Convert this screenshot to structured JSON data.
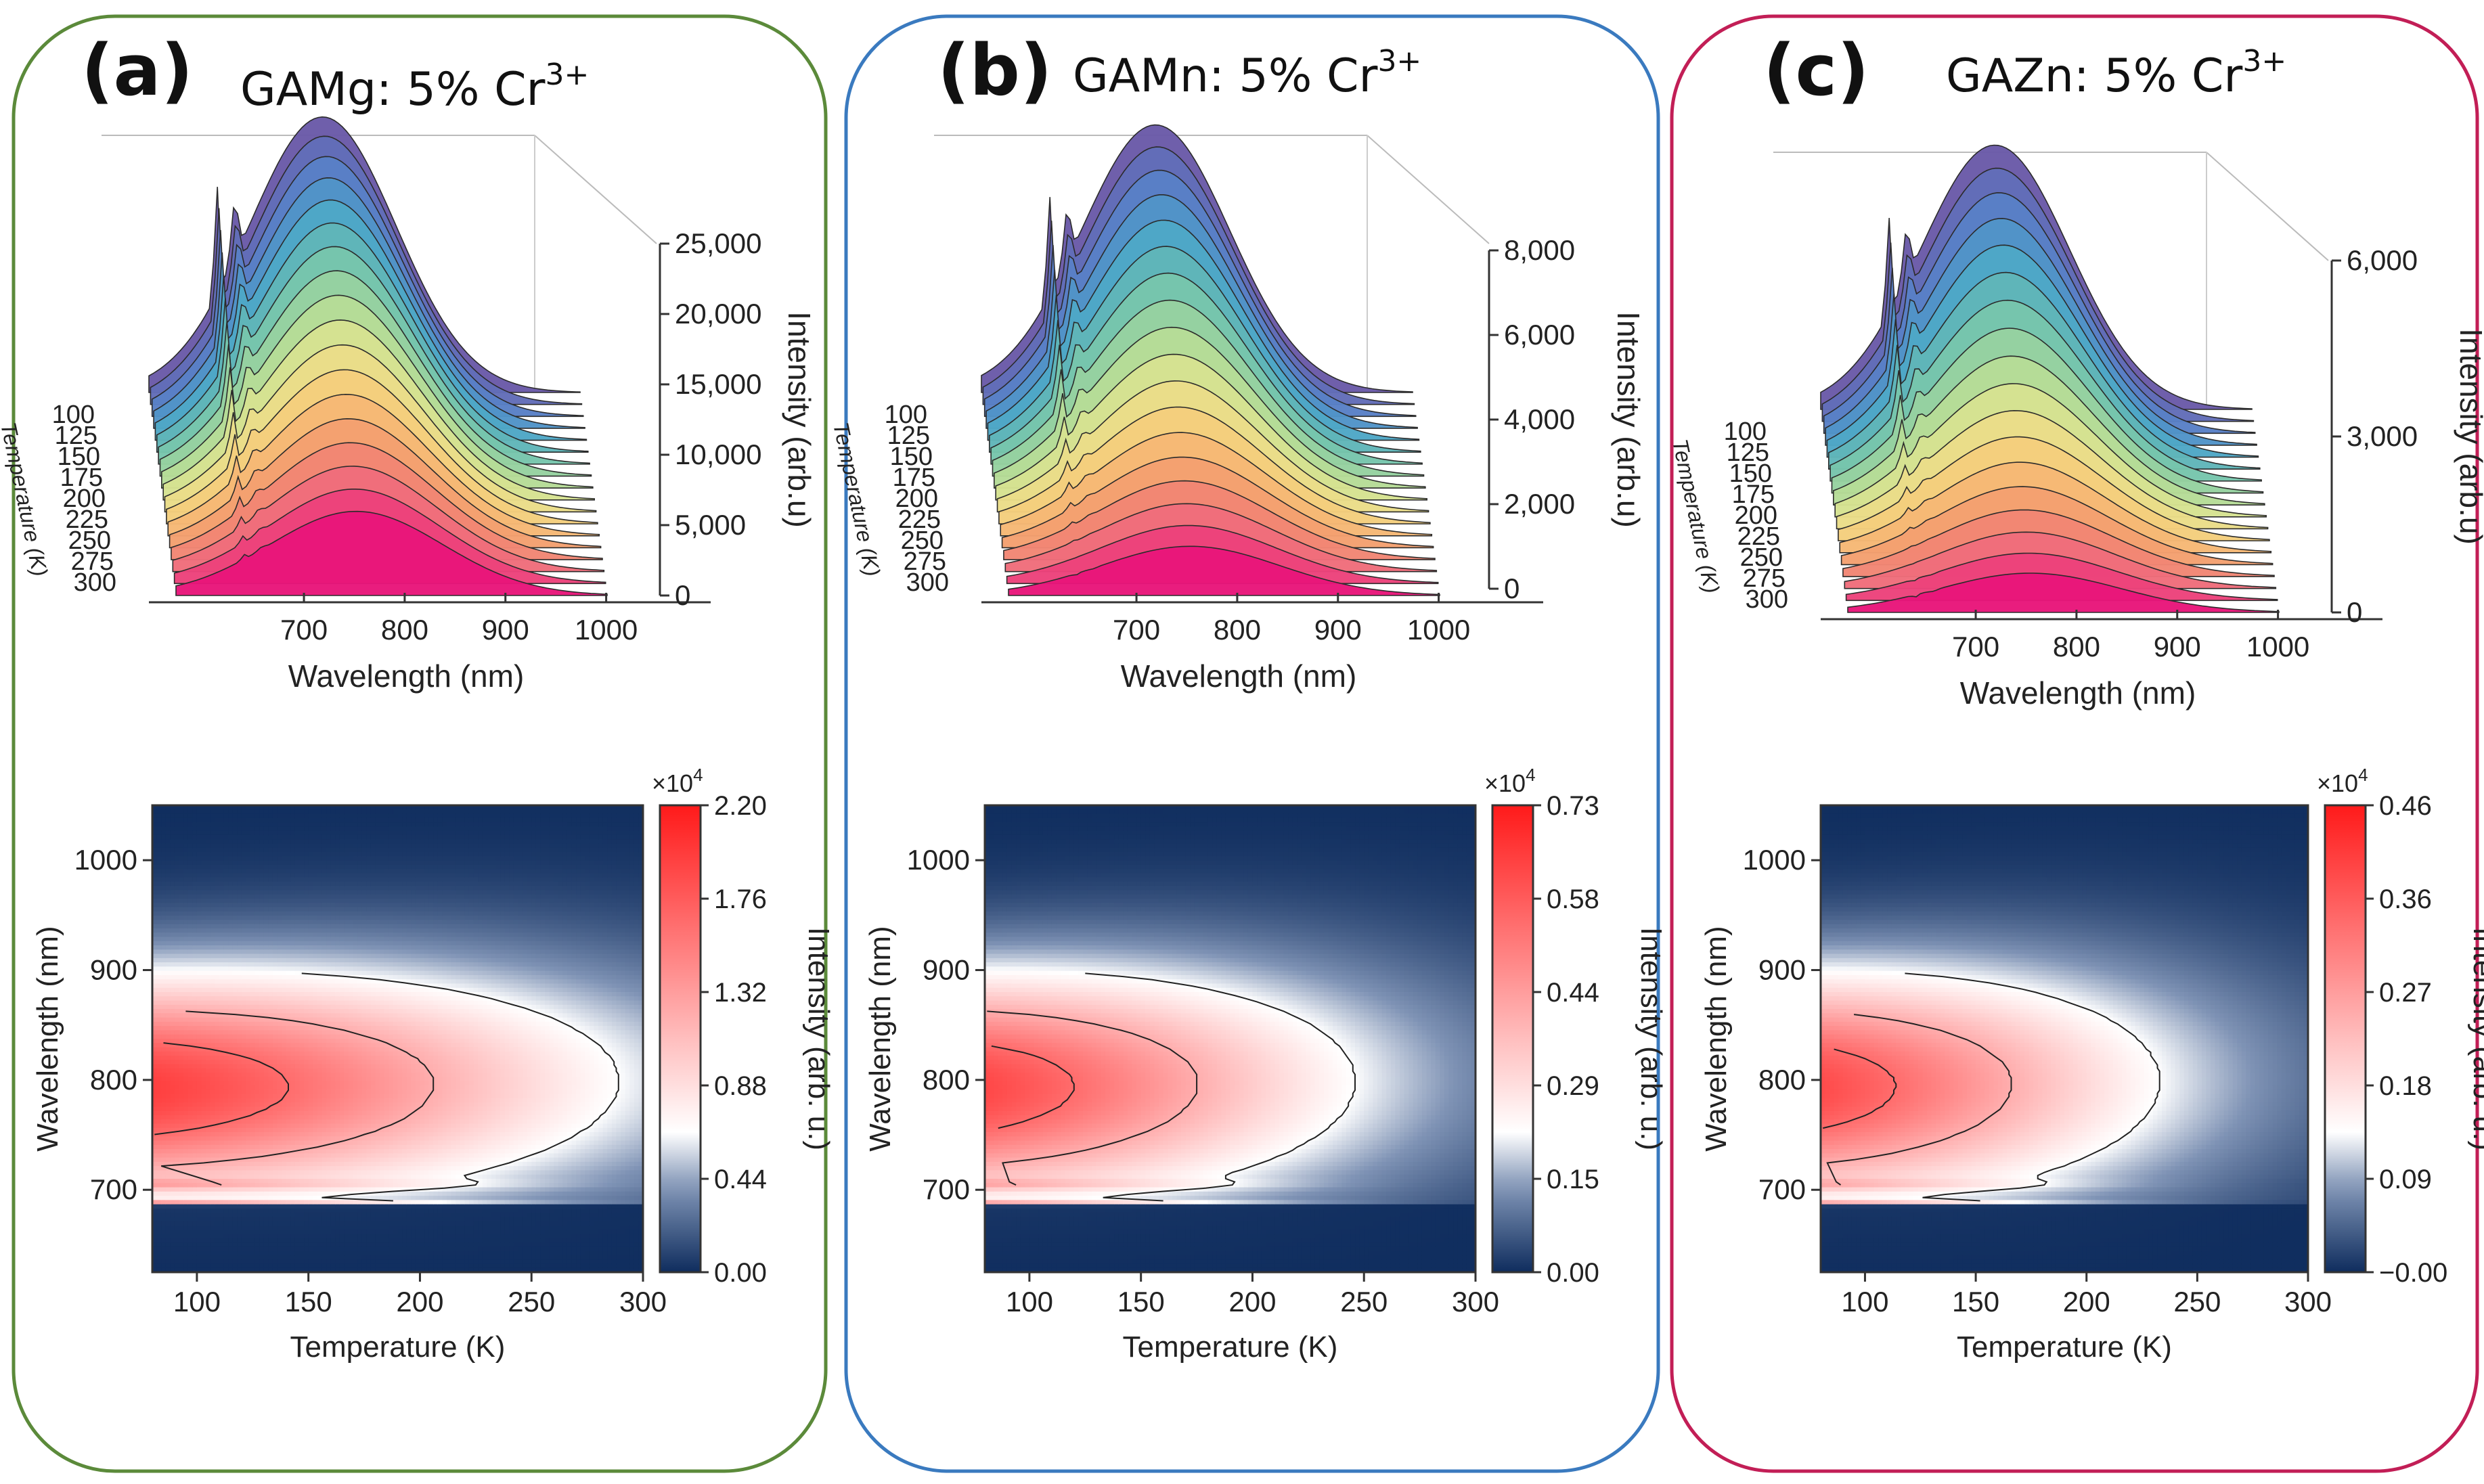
{
  "figure": {
    "colors": {
      "panel_a_border": "#5b8a3a",
      "panel_b_border": "#3a7abf",
      "panel_c_border": "#c21e56",
      "cmap_low": "#0f2d5e",
      "cmap_mid": "#ffffff",
      "cmap_high": "#ff1a1a",
      "contour": "#222222",
      "ridge_top": "#6a5aa8",
      "ridge_bottom": "#e8167a"
    }
  },
  "chart_data": [
    {
      "panel": "(a)",
      "title_prefix": "GAMg: 5% Cr",
      "title_sup": "3+",
      "waterfall": {
        "type": "area",
        "xlabel": "Wavelength (nm)",
        "ylabel": "Intensity (arb.u)",
        "zlabel": "Temperature (K)",
        "xticks": [
          "700",
          "800",
          "900",
          "1000"
        ],
        "yticks": [
          "0",
          "5,000",
          "10,000",
          "15,000",
          "20,000",
          "25,000"
        ],
        "temp_ticks": [
          "100",
          "125",
          "150",
          "175",
          "200",
          "225",
          "250",
          "275",
          "300"
        ],
        "xlim": [
          620,
          1050
        ],
        "ylim": [
          0,
          25000
        ],
        "peak_intensity_at_80K": 22000,
        "broad_band_center_nm": 790,
        "zero_phonon_line_nm": 687
      },
      "heatmap": {
        "type": "heatmap",
        "xlabel": "Temperature (K)",
        "ylabel": "Wavelength (nm)",
        "xticks": [
          "100",
          "150",
          "200",
          "250",
          "300"
        ],
        "yticks": [
          "700",
          "800",
          "900",
          "1000"
        ],
        "xlim": [
          80,
          300
        ],
        "ylim": [
          625,
          1050
        ],
        "cbar_label": "Intensity (arb. u.)",
        "cbar_multiplier": "×10",
        "cbar_exp": "4",
        "cbar_ticks": [
          "0.00",
          "0.44",
          "0.88",
          "1.32",
          "1.76",
          "2.20"
        ],
        "cbar_max": 2.2,
        "extent_temperature_K": 335
      }
    },
    {
      "panel": "(b)",
      "title_prefix": "GAMn: 5% Cr",
      "title_sup": "3+",
      "waterfall": {
        "type": "area",
        "xlabel": "Wavelength (nm)",
        "ylabel": "Intensity (arb.u)",
        "zlabel": "Temperature (K)",
        "xticks": [
          "700",
          "800",
          "900",
          "1000"
        ],
        "yticks": [
          "0",
          "2,000",
          "4,000",
          "6,000",
          "8,000"
        ],
        "temp_ticks": [
          "100",
          "125",
          "150",
          "175",
          "200",
          "225",
          "250",
          "275",
          "300"
        ],
        "xlim": [
          620,
          1050
        ],
        "ylim": [
          0,
          8000
        ],
        "peak_intensity_at_80K": 7300,
        "broad_band_center_nm": 790,
        "zero_phonon_line_nm": 687
      },
      "heatmap": {
        "type": "heatmap",
        "xlabel": "Temperature (K)",
        "ylabel": "Wavelength (nm)",
        "xticks": [
          "100",
          "150",
          "200",
          "250",
          "300"
        ],
        "yticks": [
          "700",
          "800",
          "900",
          "1000"
        ],
        "xlim": [
          80,
          300
        ],
        "ylim": [
          625,
          1050
        ],
        "cbar_label": "Intensity (arb. u.)",
        "cbar_multiplier": "×10",
        "cbar_exp": "4",
        "cbar_ticks": [
          "0.00",
          "0.15",
          "0.29",
          "0.44",
          "0.58",
          "0.73"
        ],
        "cbar_max": 0.73,
        "extent_temperature_K": 285
      }
    },
    {
      "panel": "(c)",
      "title_prefix": "GAZn: 5% Cr",
      "title_sup": "3+",
      "waterfall": {
        "type": "area",
        "xlabel": "Wavelength (nm)",
        "ylabel": "Intensity (arb.u)",
        "zlabel": "Temperature (K)",
        "xticks": [
          "700",
          "800",
          "900",
          "1000"
        ],
        "yticks": [
          "0",
          "3,000",
          "6,000"
        ],
        "temp_ticks": [
          "100",
          "125",
          "150",
          "175",
          "200",
          "225",
          "250",
          "275",
          "300"
        ],
        "xlim": [
          620,
          1050
        ],
        "ylim": [
          0,
          6000
        ],
        "peak_intensity_at_80K": 4600,
        "broad_band_center_nm": 790,
        "zero_phonon_line_nm": 687
      },
      "heatmap": {
        "type": "heatmap",
        "xlabel": "Temperature (K)",
        "ylabel": "Wavelength (nm)",
        "xticks": [
          "100",
          "150",
          "200",
          "250",
          "300"
        ],
        "yticks": [
          "700",
          "800",
          "900",
          "1000"
        ],
        "xlim": [
          80,
          300
        ],
        "ylim": [
          625,
          1050
        ],
        "cbar_label": "Intensity (arb. u.)",
        "cbar_multiplier": "×10",
        "cbar_exp": "4",
        "cbar_ticks": [
          "−0.00",
          "0.09",
          "0.18",
          "0.27",
          "0.36",
          "0.46"
        ],
        "cbar_max": 0.46,
        "extent_temperature_K": 270
      }
    }
  ]
}
